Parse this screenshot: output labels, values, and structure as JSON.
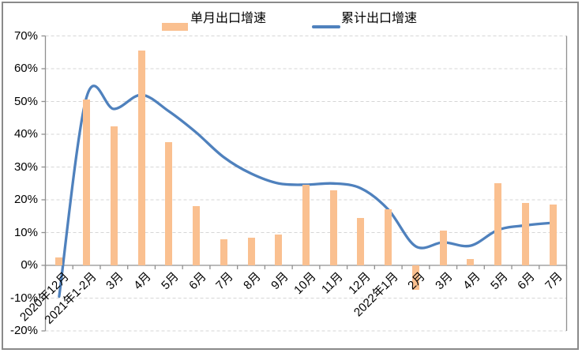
{
  "legend": {
    "bar_label": "单月出口增速",
    "line_label": "累计出口增速"
  },
  "chart_data": {
    "type": "bar+line combo",
    "title": "",
    "xlabel": "",
    "ylabel": "",
    "categories": [
      "2020年12月",
      "2021年1-2月",
      "3月",
      "4月",
      "5月",
      "6月",
      "7月",
      "8月",
      "9月",
      "10月",
      "11月",
      "12月",
      "2022年1月",
      "2月",
      "3月",
      "4月",
      "5月",
      "6月",
      "7月"
    ],
    "series": [
      {
        "name": "单月出口增速",
        "type": "bar",
        "color": "#FAC090",
        "values": [
          2.5,
          50.5,
          42.5,
          65.5,
          37.5,
          18,
          8,
          8.5,
          9.5,
          24.5,
          23,
          14.5,
          17,
          -7.5,
          10.5,
          2,
          25,
          19,
          18.5
        ]
      },
      {
        "name": "累计出口增速",
        "type": "line",
        "smooth": true,
        "color": "#4F81BD",
        "values": [
          -9.5,
          51.3,
          47.7,
          52,
          47,
          40.5,
          33,
          28,
          25,
          24.6,
          25,
          23.5,
          17,
          5.8,
          7,
          6,
          10.8,
          12.2,
          13
        ]
      }
    ],
    "ylim": [
      -20,
      70
    ],
    "ytick_interval": 10,
    "ytick_labels": [
      "70%",
      "60%",
      "50%",
      "40%",
      "30%",
      "20%",
      "10%",
      "0%",
      "-10%",
      "-20%"
    ],
    "yaxis_format": "percent",
    "grid": "horizontal dashed",
    "legend_position": "top-center",
    "x_label_rotation": -45
  },
  "colors": {
    "bar_fill": "#FAC090",
    "line_stroke": "#4F81BD",
    "gridline": "#D6D6D6",
    "axis": "#909090",
    "frame_border": "#8a8a8a",
    "background": "#FFFFFF",
    "text": "#000000"
  }
}
